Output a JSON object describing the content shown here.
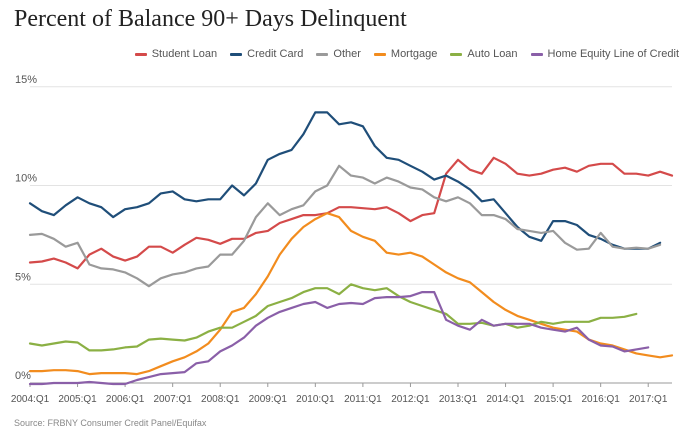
{
  "chart_data": {
    "type": "line",
    "title": "Percent of Balance 90+ Days Delinquent",
    "source": "Source: FRBNY Consumer Credit Panel/Equifax",
    "ylim": [
      0,
      16
    ],
    "y_ticks": [
      0,
      5,
      10,
      15
    ],
    "y_tick_labels": [
      "0%",
      "5%",
      "10%",
      "15%"
    ],
    "x_tick_labels": [
      "2004:Q1",
      "2005:Q1",
      "2006:Q1",
      "2007:Q1",
      "2008:Q1",
      "2009:Q1",
      "2010:Q1",
      "2011:Q1",
      "2012:Q1",
      "2013:Q1",
      "2014:Q1",
      "2015:Q1",
      "2016:Q1",
      "2017:Q1"
    ],
    "legend_position": "top-right",
    "grid": "horizontal",
    "series": [
      {
        "name": "Student Loan",
        "color": "#d44a4a",
        "values": [
          6.1,
          6.15,
          6.3,
          6.1,
          5.8,
          6.5,
          6.8,
          6.4,
          6.2,
          6.4,
          6.9,
          6.9,
          6.6,
          7.0,
          7.35,
          7.25,
          7.05,
          7.3,
          7.3,
          7.6,
          7.7,
          8.1,
          8.3,
          8.5,
          8.5,
          8.6,
          8.9,
          8.9,
          8.85,
          8.8,
          8.9,
          8.6,
          8.2,
          8.5,
          8.6,
          10.6,
          11.3,
          10.8,
          10.6,
          11.4,
          11.1,
          10.6,
          10.5,
          10.6,
          10.8,
          10.9,
          10.7,
          11.0,
          11.1,
          11.1,
          10.6,
          10.6,
          10.5,
          10.7,
          10.5
        ]
      },
      {
        "name": "Credit Card",
        "color": "#1f4e79",
        "values": [
          9.1,
          8.7,
          8.5,
          9.0,
          9.4,
          9.1,
          8.9,
          8.4,
          8.8,
          8.9,
          9.1,
          9.6,
          9.7,
          9.3,
          9.2,
          9.3,
          9.3,
          10.0,
          9.5,
          10.1,
          11.3,
          11.6,
          11.8,
          12.6,
          13.7,
          13.7,
          13.1,
          13.2,
          13.0,
          12.0,
          11.4,
          11.3,
          11.0,
          10.7,
          10.3,
          10.5,
          10.2,
          9.8,
          9.2,
          9.3,
          8.6,
          7.9,
          7.4,
          7.2,
          8.2,
          8.2,
          8.0,
          7.5,
          7.3,
          7.0,
          6.8,
          6.8,
          6.8,
          7.1
        ]
      },
      {
        "name": "Other",
        "color": "#9a9a9a",
        "values": [
          7.5,
          7.55,
          7.3,
          6.9,
          7.1,
          6.0,
          5.8,
          5.75,
          5.6,
          5.3,
          4.9,
          5.3,
          5.5,
          5.6,
          5.8,
          5.9,
          6.5,
          6.5,
          7.2,
          8.4,
          9.1,
          8.5,
          8.8,
          9.0,
          9.7,
          10.0,
          11.0,
          10.5,
          10.4,
          10.1,
          10.4,
          10.2,
          9.9,
          9.8,
          9.4,
          9.2,
          9.4,
          9.1,
          8.5,
          8.5,
          8.3,
          7.8,
          7.7,
          7.6,
          7.7,
          7.1,
          6.75,
          6.8,
          7.6,
          6.9,
          6.8,
          6.85,
          6.8,
          7.0
        ]
      },
      {
        "name": "Mortgage",
        "color": "#f28c1e",
        "values": [
          0.6,
          0.6,
          0.65,
          0.65,
          0.6,
          0.45,
          0.5,
          0.5,
          0.5,
          0.45,
          0.6,
          0.85,
          1.1,
          1.3,
          1.6,
          2.0,
          2.7,
          3.6,
          3.8,
          4.5,
          5.4,
          6.5,
          7.3,
          7.9,
          8.3,
          8.6,
          8.4,
          7.7,
          7.4,
          7.2,
          6.6,
          6.5,
          6.6,
          6.4,
          6.0,
          5.6,
          5.3,
          5.1,
          4.6,
          4.1,
          3.7,
          3.4,
          3.2,
          3.0,
          2.8,
          2.7,
          2.6,
          2.2,
          2.0,
          1.9,
          1.7,
          1.5,
          1.4,
          1.3,
          1.4
        ]
      },
      {
        "name": "Auto Loan",
        "color": "#8bb044",
        "values": [
          2.0,
          1.9,
          2.0,
          2.1,
          2.05,
          1.65,
          1.65,
          1.7,
          1.8,
          1.85,
          2.2,
          2.25,
          2.2,
          2.15,
          2.3,
          2.6,
          2.8,
          2.8,
          3.1,
          3.4,
          3.9,
          4.1,
          4.3,
          4.6,
          4.8,
          4.8,
          4.5,
          5.0,
          4.8,
          4.7,
          4.8,
          4.4,
          4.1,
          3.9,
          3.7,
          3.5,
          3.0,
          3.0,
          3.05,
          2.9,
          3.0,
          2.8,
          2.9,
          3.1,
          3.0,
          3.1,
          3.1,
          3.1,
          3.3,
          3.3,
          3.35,
          3.5
        ]
      },
      {
        "name": "Home Equity Line of Credit",
        "color": "#8a5fa8",
        "values": [
          -0.05,
          -0.05,
          0.0,
          0.0,
          0.0,
          0.05,
          0.0,
          -0.05,
          -0.05,
          0.15,
          0.3,
          0.45,
          0.5,
          0.55,
          1.0,
          1.1,
          1.6,
          1.9,
          2.3,
          2.9,
          3.3,
          3.6,
          3.8,
          4.0,
          4.1,
          3.8,
          4.0,
          4.05,
          4.0,
          4.3,
          4.35,
          4.35,
          4.4,
          4.6,
          4.6,
          3.2,
          2.9,
          2.7,
          3.2,
          2.9,
          3.0,
          3.0,
          3.0,
          2.8,
          2.7,
          2.6,
          2.8,
          2.2,
          1.9,
          1.85,
          1.6,
          1.7,
          1.8
        ]
      }
    ]
  }
}
